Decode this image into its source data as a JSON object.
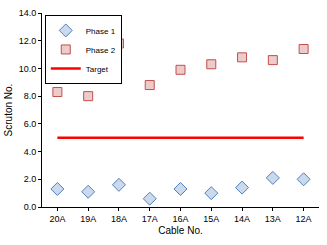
{
  "chart_data": {
    "type": "scatter",
    "x_label": "Cable No.",
    "y_label": "Scruton No.",
    "categories": [
      "20A",
      "19A",
      "18A",
      "17A",
      "16A",
      "15A",
      "14A",
      "13A",
      "12A"
    ],
    "series": [
      {
        "name": "Phase 1",
        "type": "scatter",
        "marker": "diamond",
        "color": "#4f81bd",
        "values": [
          1.3,
          1.1,
          1.6,
          0.6,
          1.3,
          1.0,
          1.4,
          2.1,
          2.0
        ]
      },
      {
        "name": "Phase 2",
        "type": "scatter",
        "marker": "square",
        "color": "#c0504d",
        "values": [
          8.3,
          8.0,
          11.8,
          8.8,
          9.9,
          10.3,
          10.8,
          10.6,
          11.4
        ]
      },
      {
        "name": "Target",
        "type": "line",
        "line_style": "solid",
        "color": "#ff0000",
        "values": [
          5.0,
          5.0,
          5.0,
          5.0,
          5.0,
          5.0,
          5.0,
          5.0,
          5.0
        ]
      }
    ],
    "ylim": [
      0,
      14
    ],
    "yticks": [
      {
        "value": 0,
        "label": "0.0"
      },
      {
        "value": 2,
        "label": "2.0"
      },
      {
        "value": 4,
        "label": "4.0"
      },
      {
        "value": 6,
        "label": "6.0"
      },
      {
        "value": 8,
        "label": "8.0"
      },
      {
        "value": 10,
        "label": "10.0"
      },
      {
        "value": 12,
        "label": "12.0"
      },
      {
        "value": 14,
        "label": "14.0"
      }
    ],
    "grid": false,
    "legend": "top left"
  }
}
